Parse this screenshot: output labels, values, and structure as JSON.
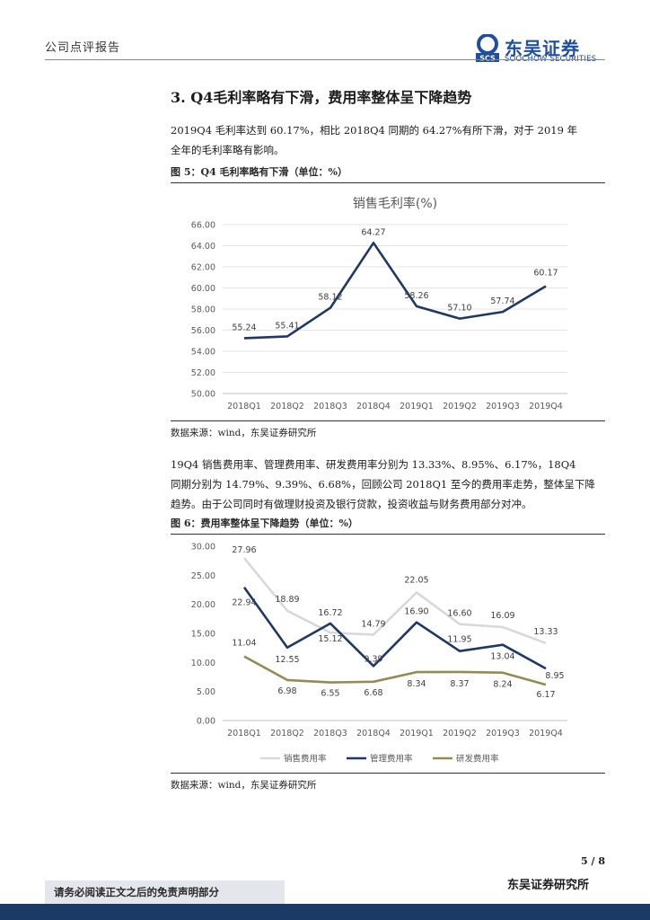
{
  "header": {
    "report_type": "公司点评报告",
    "logo_cn": "东吴证券",
    "logo_en": "SOOCHOW SECURITIES",
    "logo_mark": "SCS"
  },
  "section": {
    "title": "3.   Q4毛利率略有下滑，费用率整体呈下降趋势",
    "para1_line1": "2019Q4 毛利率达到 60.17%，相比 2018Q4 同期的 64.27%有所下滑，对于 2019 年",
    "para1_line2": "全年的毛利率略有影响。",
    "para2_line1": "19Q4 销售费用率、管理费用率、研发费用率分别为 13.33%、8.95%、6.17%，18Q4",
    "para2_line2": "同期分别为 14.79%、9.39%、6.68%，回顾公司 2018Q1 至今的费用率走势，整体呈下降",
    "para2_line3": "趋势。由于公司同时有做理财投资及银行贷款，投资收益与财务费用部分对冲。"
  },
  "figure5": {
    "caption": "图 5：Q4 毛利率略有下滑（单位：%）",
    "source": "数据来源：wind，东吴证券研究所"
  },
  "figure6": {
    "caption": "图 6：费用率整体呈下降趋势（单位：%）",
    "source": "数据来源：wind，东吴证券研究所"
  },
  "chart_data": [
    {
      "type": "line",
      "title": "销售毛利率(%)",
      "categories": [
        "2018Q1",
        "2018Q2",
        "2018Q3",
        "2018Q4",
        "2019Q1",
        "2019Q2",
        "2019Q3",
        "2019Q4"
      ],
      "series": [
        {
          "name": "销售毛利率",
          "values": [
            55.24,
            55.41,
            58.12,
            64.27,
            58.26,
            57.1,
            57.74,
            60.17
          ],
          "color": "#1f3864",
          "labels": [
            "55.24",
            "55.41",
            "58.12",
            "64.27",
            "58.26",
            "57.10",
            "57.74",
            "60.17"
          ]
        }
      ],
      "ylim": [
        50,
        66
      ],
      "yticks": [
        "50.00",
        "52.00",
        "54.00",
        "56.00",
        "58.00",
        "60.00",
        "62.00",
        "64.00",
        "66.00"
      ],
      "grid": true,
      "legend": "none"
    },
    {
      "type": "line",
      "title": "",
      "categories": [
        "2018Q1",
        "2018Q2",
        "2018Q3",
        "2018Q4",
        "2019Q1",
        "2019Q2",
        "2019Q3",
        "2019Q4"
      ],
      "series": [
        {
          "name": "销售费用率",
          "values": [
            27.96,
            18.89,
            15.12,
            14.79,
            22.05,
            16.6,
            16.09,
            13.33
          ],
          "color": "#d9d9d9",
          "labels": [
            "27.96",
            "18.89",
            "15.12",
            "14.79",
            "22.05",
            "16.60",
            "16.09",
            "13.33"
          ]
        },
        {
          "name": "管理费用率",
          "values": [
            22.94,
            12.55,
            16.72,
            9.39,
            16.9,
            11.95,
            13.04,
            8.95
          ],
          "color": "#1f3864",
          "labels": [
            "22.94",
            "12.55",
            "16.72",
            "9.39",
            "16.90",
            "11.95",
            "13.04",
            "8.95"
          ]
        },
        {
          "name": "研发费用率",
          "values": [
            11.04,
            6.98,
            6.55,
            6.68,
            8.34,
            8.37,
            8.24,
            6.17
          ],
          "color": "#948a54",
          "labels": [
            "11.04",
            "6.98",
            "6.55",
            "6.68",
            "8.34",
            "8.37",
            "8.24",
            "6.17"
          ]
        }
      ],
      "ylim": [
        0,
        30
      ],
      "yticks": [
        "0.00",
        "5.00",
        "10.00",
        "15.00",
        "20.00",
        "25.00",
        "30.00"
      ],
      "grid": false,
      "legend": "bottom"
    }
  ],
  "footer": {
    "page_number": "5 / 8",
    "disclaimer": "请务必阅读正文之后的免责声明部分",
    "company": "东吴证券研究所"
  }
}
